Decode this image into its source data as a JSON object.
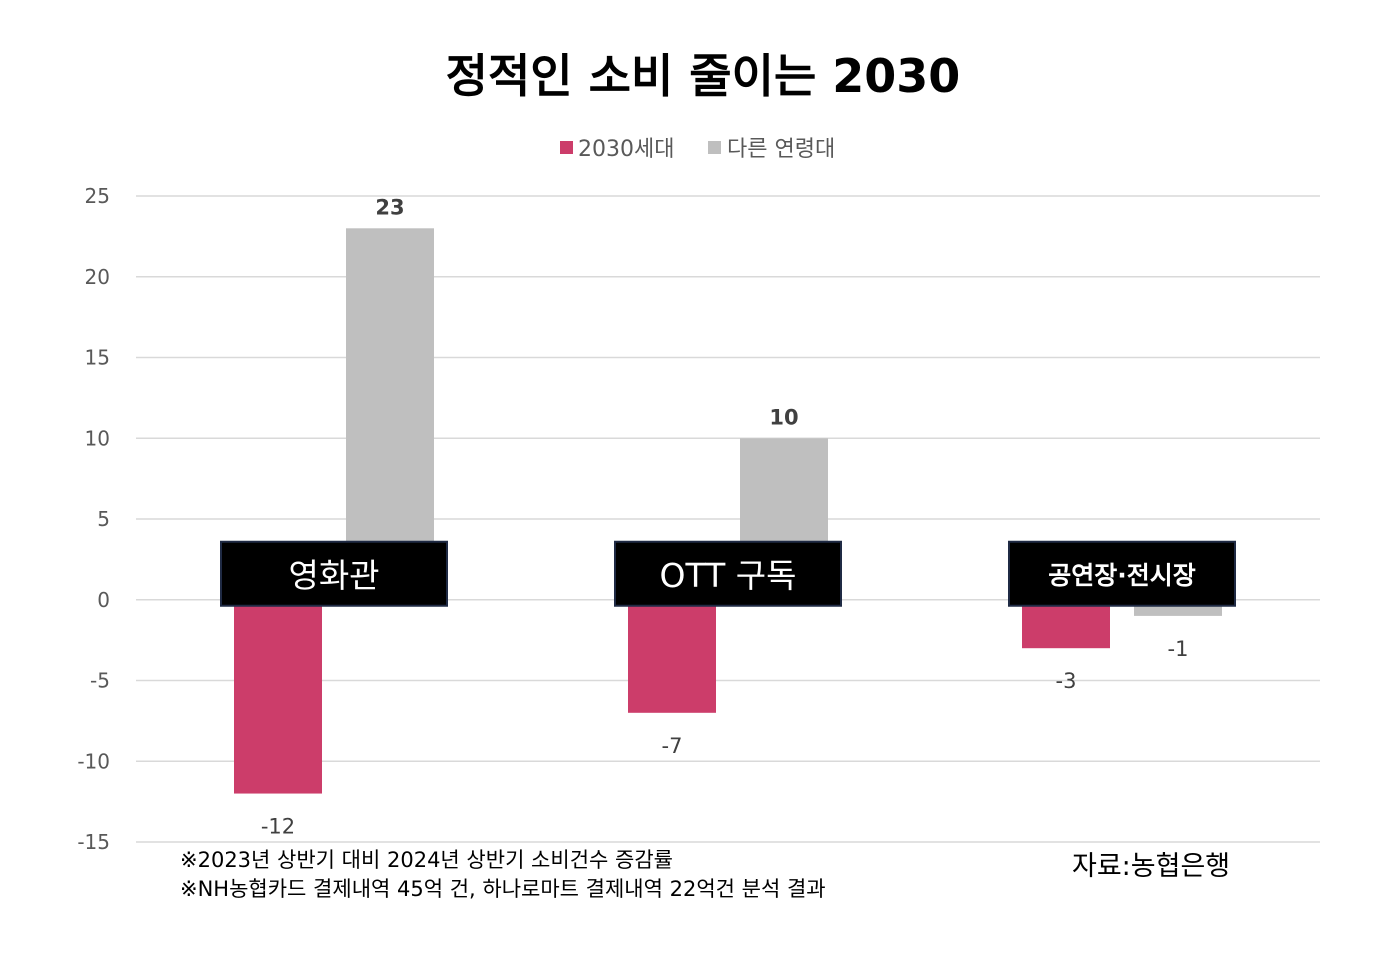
{
  "chart_data": {
    "type": "bar",
    "title": "정적인 소비 줄이는 2030",
    "categories": [
      "영화관",
      "OTT 구독",
      "공연장·전시장"
    ],
    "series": [
      {
        "name": "2030세대",
        "values": [
          -12,
          -7,
          -3
        ],
        "color": "#cc3d6a"
      },
      {
        "name": "다른 연령대",
        "values": [
          23,
          10,
          -1
        ],
        "color": "#bfbfbf"
      }
    ],
    "ylim": [
      -15,
      25
    ],
    "yticks": [
      25,
      20,
      15,
      10,
      5,
      0,
      -5,
      -10,
      -15
    ],
    "grid": true,
    "legend_position": "top-center",
    "category_label_style": "black-box-on-zero-line"
  },
  "notes": [
    "※2023년 상반기 대비 2024년 상반기 소비건수 증감률",
    "※NH농협카드 결제내역 45억 건, 하나로마트 결제내역 22억건 분석 결과"
  ],
  "source": "자료:농협은행"
}
